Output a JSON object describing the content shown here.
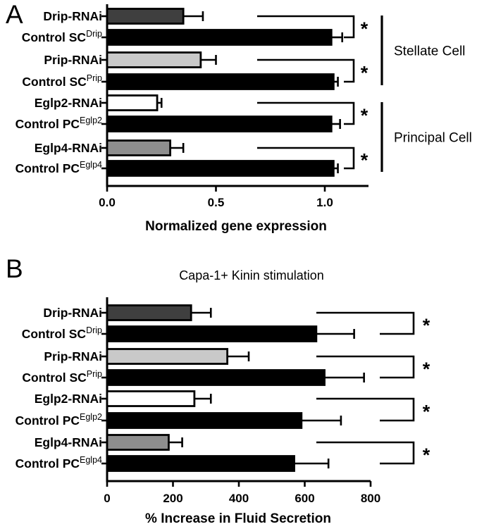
{
  "figure": {
    "background_color": "#ffffff",
    "significance_marker": "*"
  },
  "chart_data": [
    {
      "type": "bar",
      "orientation": "horizontal",
      "panel_label": "A",
      "title": "",
      "xlabel": "Normalized gene expression",
      "ylabel": "",
      "xlim": [
        0,
        1.2
      ],
      "xticks": [
        0,
        0.5,
        1.0
      ],
      "xtick_labels": [
        "0.0",
        "0.5",
        "1.0"
      ],
      "grid": false,
      "categories": [
        {
          "main": "Drip-RNAi",
          "sup": ""
        },
        {
          "main": "Control SC",
          "sup": "Drip"
        },
        {
          "main": "Prip-RNAi",
          "sup": ""
        },
        {
          "main": "Control SC",
          "sup": "Prip"
        },
        {
          "main": "Eglp2-RNAi",
          "sup": ""
        },
        {
          "main": "Control PC",
          "sup": "Eglp2"
        },
        {
          "main": "Eglp4-RNAi",
          "sup": ""
        },
        {
          "main": "Control PC",
          "sup": "Eglp4"
        }
      ],
      "values": [
        0.35,
        1.03,
        0.43,
        1.04,
        0.23,
        1.03,
        0.29,
        1.04
      ],
      "errors": [
        0.09,
        0.05,
        0.07,
        0.02,
        0.02,
        0.04,
        0.06,
        0.02
      ],
      "bar_colors": [
        "#3f3f3f",
        "#000000",
        "#c9c9c9",
        "#000000",
        "#ffffff",
        "#000000",
        "#8e8e8e",
        "#000000"
      ],
      "significance": [
        {
          "rows": [
            0,
            1
          ],
          "label": "*"
        },
        {
          "rows": [
            2,
            3
          ],
          "label": "*"
        },
        {
          "rows": [
            4,
            5
          ],
          "label": "*"
        },
        {
          "rows": [
            6,
            7
          ],
          "label": "*"
        }
      ],
      "group_labels": [
        {
          "label": "Stellate Cell",
          "rows": [
            0,
            3
          ]
        },
        {
          "label": "Principal Cell",
          "rows": [
            4,
            7
          ]
        }
      ]
    },
    {
      "type": "bar",
      "orientation": "horizontal",
      "panel_label": "B",
      "title": "Capa-1+ Kinin stimulation",
      "xlabel": "% Increase in Fluid Secretion",
      "ylabel": "",
      "xlim": [
        0,
        800
      ],
      "xticks": [
        0,
        200,
        400,
        600,
        800
      ],
      "xtick_labels": [
        "0",
        "200",
        "400",
        "600",
        "800"
      ],
      "grid": false,
      "categories": [
        {
          "main": "Drip-RNAi",
          "sup": ""
        },
        {
          "main": "Control SC",
          "sup": "Drip"
        },
        {
          "main": "Prip-RNAi",
          "sup": ""
        },
        {
          "main": "Control SC",
          "sup": "Prip"
        },
        {
          "main": "Eglp2-RNAi",
          "sup": ""
        },
        {
          "main": "Control PC",
          "sup": "Eglp2"
        },
        {
          "main": "Eglp4-RNAi",
          "sup": ""
        },
        {
          "main": "Control PC",
          "sup": "Eglp4"
        }
      ],
      "values": [
        255,
        635,
        365,
        660,
        265,
        590,
        187,
        568
      ],
      "errors": [
        60,
        115,
        65,
        120,
        50,
        120,
        41,
        104
      ],
      "bar_colors": [
        "#3f3f3f",
        "#000000",
        "#c9c9c9",
        "#000000",
        "#ffffff",
        "#000000",
        "#8e8e8e",
        "#000000"
      ],
      "significance": [
        {
          "rows": [
            0,
            1
          ],
          "label": "*"
        },
        {
          "rows": [
            2,
            3
          ],
          "label": "*"
        },
        {
          "rows": [
            4,
            5
          ],
          "label": "*"
        },
        {
          "rows": [
            6,
            7
          ],
          "label": "*"
        }
      ],
      "group_labels": []
    }
  ]
}
